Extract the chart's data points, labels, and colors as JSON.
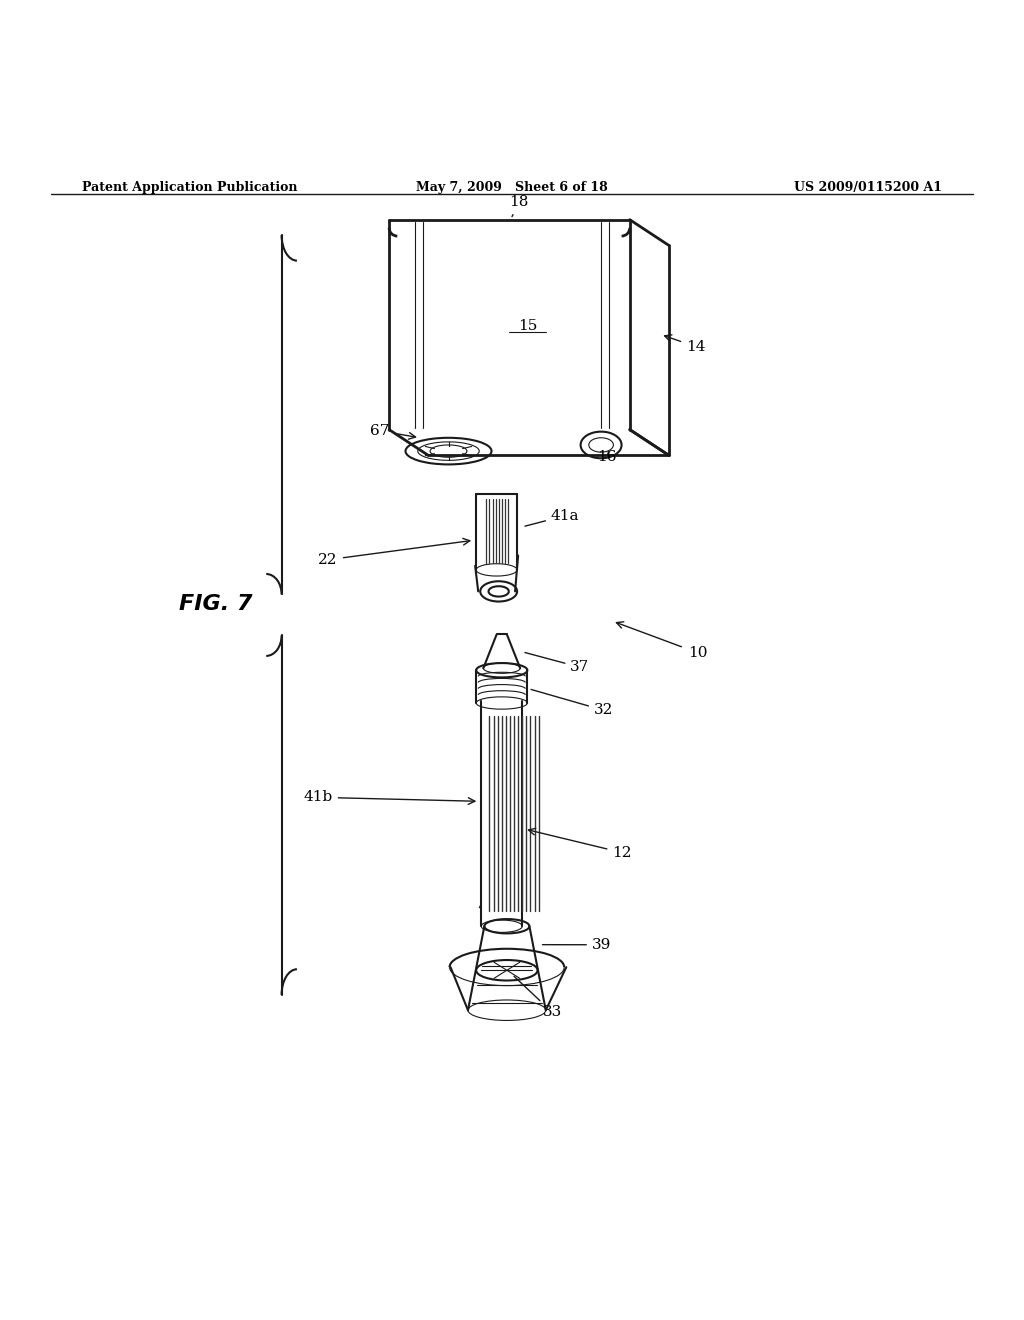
{
  "bg_color": "#ffffff",
  "line_color": "#1a1a1a",
  "header_left": "Patent Application Publication",
  "header_center": "May 7, 2009   Sheet 6 of 18",
  "header_right": "US 2009/0115200 A1",
  "fig_label": "FIG. 7",
  "lw_main": 1.5,
  "lw_thin": 0.8,
  "lw_thick": 2.0
}
